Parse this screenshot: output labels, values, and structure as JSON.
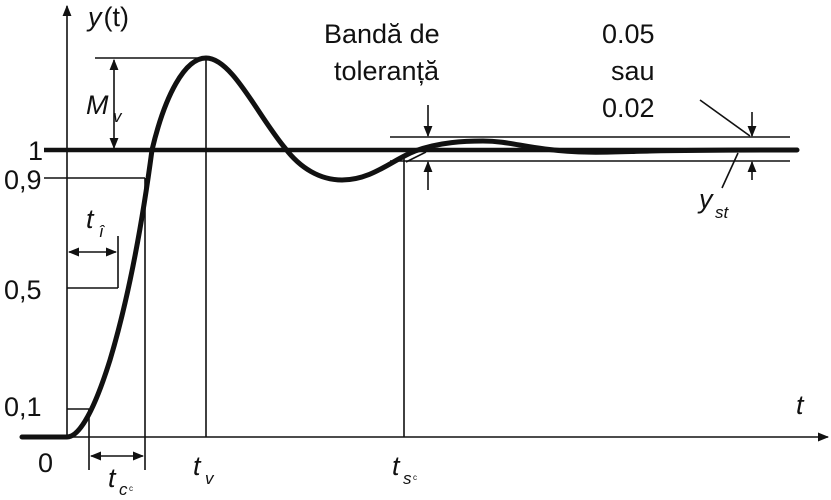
{
  "axes": {
    "y_label_main": "y",
    "y_label_arg": "(t)",
    "x_label": "t",
    "origin": "0"
  },
  "y_ticks": [
    {
      "label": "1"
    },
    {
      "label": "0,9"
    },
    {
      "label": "0,5"
    },
    {
      "label": "0,1"
    }
  ],
  "annotations": {
    "overshoot_main": "M",
    "overshoot_sub": "v",
    "rise_main": "t",
    "rise_sub": "î",
    "growth_main": "t",
    "growth_sub": "c",
    "growth_mark": "c",
    "peak_main": "t",
    "peak_sub": "v",
    "settle_main": "t",
    "settle_sub": "s",
    "settle_mark": "c",
    "steady_main": "y",
    "steady_sub": "st"
  },
  "band": {
    "line1": "Bandă de",
    "line2": "toleranță"
  },
  "band_values": {
    "line1": "0.05",
    "line2": "sau",
    "line3": "0.02"
  }
}
